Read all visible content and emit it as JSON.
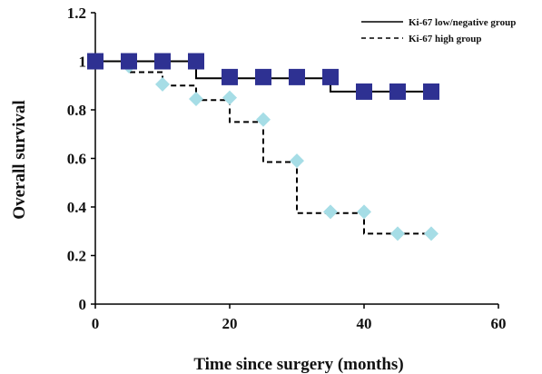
{
  "chart_data": {
    "type": "line",
    "title": "",
    "xlabel": "Time since surgery (months)",
    "ylabel": "Overall survival",
    "xlim": [
      0,
      60
    ],
    "ylim": [
      0,
      1.2
    ],
    "xticks": [
      0,
      20,
      40,
      60
    ],
    "yticks": [
      0,
      0.2,
      0.4,
      0.6,
      0.8,
      1,
      1.2
    ],
    "ytick_labels": [
      "0",
      "0.2",
      "0.4",
      "0.6",
      "0.8",
      "1",
      "1.2"
    ],
    "grid": false,
    "legend_position": "top-right",
    "series": [
      {
        "name": "Ki-67 low/negative group",
        "line_style": "solid",
        "marker": "square",
        "marker_color": "#2e3192",
        "line_color": "#000000",
        "step_x": [
          0,
          15,
          15,
          35,
          35,
          50
        ],
        "step_y": [
          1,
          1,
          0.93,
          0.93,
          0.875,
          0.875
        ],
        "points_x": [
          0,
          5,
          10,
          15,
          20,
          25,
          30,
          35,
          40,
          45,
          50
        ],
        "points_y": [
          1,
          1,
          1,
          1,
          0.935,
          0.935,
          0.935,
          0.935,
          0.875,
          0.875,
          0.875
        ]
      },
      {
        "name": "Ki-67 high group",
        "line_style": "dashed",
        "marker": "diamond",
        "marker_color": "#a6dde6",
        "line_color": "#000000",
        "step_x": [
          0,
          5,
          5,
          10,
          10,
          15,
          15,
          20,
          20,
          25,
          25,
          30,
          30,
          40,
          40,
          50
        ],
        "step_y": [
          1,
          1,
          0.955,
          0.955,
          0.9,
          0.9,
          0.84,
          0.84,
          0.75,
          0.75,
          0.585,
          0.585,
          0.375,
          0.375,
          0.29,
          0.29
        ],
        "points_x": [
          5,
          10,
          15,
          20,
          25,
          30,
          35,
          40,
          45,
          50
        ],
        "points_y": [
          0.98,
          0.905,
          0.845,
          0.85,
          0.76,
          0.59,
          0.38,
          0.38,
          0.29,
          0.29
        ]
      }
    ]
  }
}
